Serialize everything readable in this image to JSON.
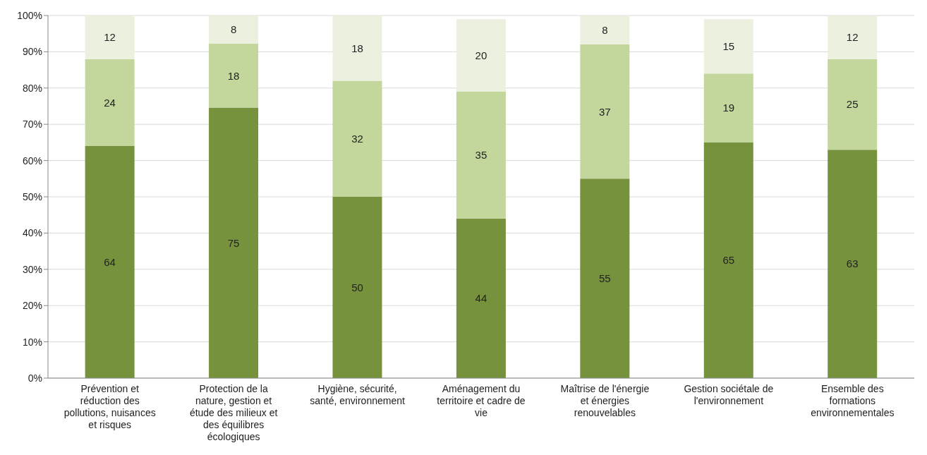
{
  "chart_data": {
    "type": "bar",
    "stacked": true,
    "grid": "y",
    "legend": false,
    "categories": [
      "Prévention et réduction des pollutions, nuisances et risques",
      "Protection de la nature, gestion et étude des milieux et des équilibres écologiques",
      "Hygiène, sécurité, santé, environnement",
      "Aménagement du territoire et cadre de vie",
      "Maîtrise de l'énergie et énergies renouvelables",
      "Gestion sociétale de l'environnement",
      "Ensemble des formations environnementales"
    ],
    "series": [
      {
        "color": "#76923c",
        "values": [
          64,
          74.6,
          50,
          44,
          55,
          65,
          63
        ],
        "value_labels": [
          "64",
          "75",
          "50",
          "44",
          "55",
          "65",
          "63"
        ]
      },
      {
        "color": "#c3d69b",
        "values": [
          24,
          17.6,
          32,
          35,
          37,
          19,
          25
        ],
        "value_labels": [
          "24",
          "18",
          "32",
          "35",
          "37",
          "19",
          "25"
        ]
      },
      {
        "color": "#ebf1de",
        "values": [
          12,
          7.8,
          18,
          20,
          8,
          15,
          12
        ],
        "value_labels": [
          "12",
          "8",
          "18",
          "20",
          "8",
          "15",
          "12"
        ]
      }
    ],
    "ylim": [
      0,
      100
    ],
    "yticks": [
      {
        "value": 0,
        "label": "0%"
      },
      {
        "value": 10,
        "label": "10%"
      },
      {
        "value": 20,
        "label": "20%"
      },
      {
        "value": 30,
        "label": "30%"
      },
      {
        "value": 40,
        "label": "40%"
      },
      {
        "value": 50,
        "label": "50%"
      },
      {
        "value": 60,
        "label": "60%"
      },
      {
        "value": 70,
        "label": "70%"
      },
      {
        "value": 80,
        "label": "80%"
      },
      {
        "value": 90,
        "label": "90%"
      },
      {
        "value": 100,
        "label": "100%"
      }
    ]
  }
}
